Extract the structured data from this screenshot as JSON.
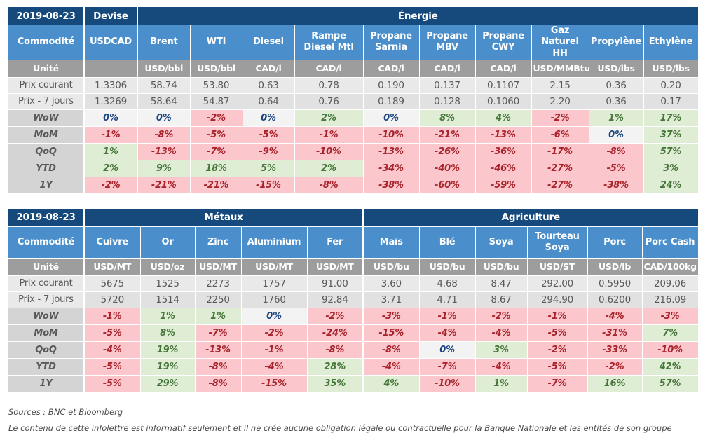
{
  "labels": {
    "date": "2019-08-23",
    "commodity": "Commodité",
    "unit": "Unité",
    "price_current": "Prix courant",
    "price_previous": "Prix - 7 jours"
  },
  "colors": {
    "navy": "#174A7C",
    "blue": "#4A8FCB",
    "unit_gray": "#9D9D9D",
    "label_gray": "#D4D4D4",
    "price_bg1": "#E9E9E9",
    "price_bg2": "#E1E1E1",
    "pos_bg": "#DFEDD5",
    "pos_text": "#46763A",
    "neg_bg": "#FBC7CC",
    "neg_text": "#A8232B",
    "zero_bg": "#F3F3F3",
    "zero_text": "#1A4480"
  },
  "tables": [
    {
      "name": "energie",
      "groups": [
        {
          "label": "Devise",
          "span": 1
        },
        {
          "label": "Énergie",
          "span": 10
        }
      ],
      "columns": [
        "USDCAD",
        "Brent",
        "WTI",
        "Diesel",
        "Rampe Diesel Mtl",
        "Propane Sarnia",
        "Propane MBV",
        "Propane CWY",
        "Gaz Naturel HH",
        "Propylène",
        "Ethylène"
      ],
      "units": [
        "",
        "USD/bbl",
        "USD/bbl",
        "CAD/l",
        "CAD/l",
        "CAD/l",
        "CAD/l",
        "CAD/l",
        "USD/MMBtu",
        "USD/lbs",
        "USD/lbs"
      ],
      "price_current": [
        "1.3306",
        "58.74",
        "53.80",
        "0.63",
        "0.78",
        "0.190",
        "0.137",
        "0.1107",
        "2.15",
        "0.36",
        "0.20"
      ],
      "price_previous": [
        "1.3269",
        "58.64",
        "54.87",
        "0.64",
        "0.76",
        "0.189",
        "0.128",
        "0.1060",
        "2.20",
        "0.36",
        "0.17"
      ],
      "changes": [
        {
          "label": "WoW",
          "values": [
            "0%",
            "0%",
            "-2%",
            "0%",
            "2%",
            "0%",
            "8%",
            "4%",
            "-2%",
            "1%",
            "17%"
          ]
        },
        {
          "label": "MoM",
          "values": [
            "-1%",
            "-8%",
            "-5%",
            "-5%",
            "-1%",
            "-10%",
            "-21%",
            "-13%",
            "-6%",
            "0%",
            "37%"
          ]
        },
        {
          "label": "QoQ",
          "values": [
            "1%",
            "-13%",
            "-7%",
            "-9%",
            "-10%",
            "-13%",
            "-26%",
            "-36%",
            "-17%",
            "-8%",
            "57%"
          ]
        },
        {
          "label": "YTD",
          "values": [
            "2%",
            "9%",
            "18%",
            "5%",
            "2%",
            "-34%",
            "-40%",
            "-46%",
            "-27%",
            "-5%",
            "3%"
          ]
        },
        {
          "label": "1Y",
          "values": [
            "-2%",
            "-21%",
            "-21%",
            "-15%",
            "-8%",
            "-38%",
            "-60%",
            "-59%",
            "-27%",
            "-38%",
            "24%"
          ]
        }
      ]
    },
    {
      "name": "metaux-agriculture",
      "groups": [
        {
          "label": "Métaux",
          "span": 5
        },
        {
          "label": "Agriculture",
          "span": 6
        }
      ],
      "columns": [
        "Cuivre",
        "Or",
        "Zinc",
        "Aluminium",
        "Fer",
        "Maïs",
        "Blé",
        "Soya",
        "Tourteau Soya",
        "Porc",
        "Porc Cash"
      ],
      "units": [
        "USD/MT",
        "USD/oz",
        "USD/MT",
        "USD/MT",
        "USD/MT",
        "USD/bu",
        "USD/bu",
        "USD/bu",
        "USD/ST",
        "USD/lb",
        "CAD/100kg"
      ],
      "price_current": [
        "5675",
        "1525",
        "2273",
        "1757",
        "91.00",
        "3.60",
        "4.68",
        "8.47",
        "292.00",
        "0.5950",
        "209.06"
      ],
      "price_previous": [
        "5720",
        "1514",
        "2250",
        "1760",
        "92.84",
        "3.71",
        "4.71",
        "8.67",
        "294.90",
        "0.6200",
        "216.09"
      ],
      "changes": [
        {
          "label": "WoW",
          "values": [
            "-1%",
            "1%",
            "1%",
            "0%",
            "-2%",
            "-3%",
            "-1%",
            "-2%",
            "-1%",
            "-4%",
            "-3%"
          ]
        },
        {
          "label": "MoM",
          "values": [
            "-5%",
            "8%",
            "-7%",
            "-2%",
            "-24%",
            "-15%",
            "-4%",
            "-4%",
            "-5%",
            "-31%",
            "7%"
          ]
        },
        {
          "label": "QoQ",
          "values": [
            "-4%",
            "19%",
            "-13%",
            "-1%",
            "-8%",
            "-8%",
            "0%",
            "3%",
            "-2%",
            "-33%",
            "-10%"
          ]
        },
        {
          "label": "YTD",
          "values": [
            "-5%",
            "19%",
            "-8%",
            "-4%",
            "28%",
            "-4%",
            "-7%",
            "-4%",
            "-5%",
            "-2%",
            "42%"
          ]
        },
        {
          "label": "1Y",
          "values": [
            "-5%",
            "29%",
            "-8%",
            "-15%",
            "35%",
            "4%",
            "-10%",
            "1%",
            "-7%",
            "16%",
            "57%"
          ]
        }
      ]
    }
  ],
  "footer": {
    "sources": "Sources : BNC et Bloomberg",
    "disclaimer": "Le contenu de cette infolettre est informatif seulement et il ne crée aucune obligation légale ou contractuelle pour la Banque Nationale et les entités de son groupe"
  }
}
